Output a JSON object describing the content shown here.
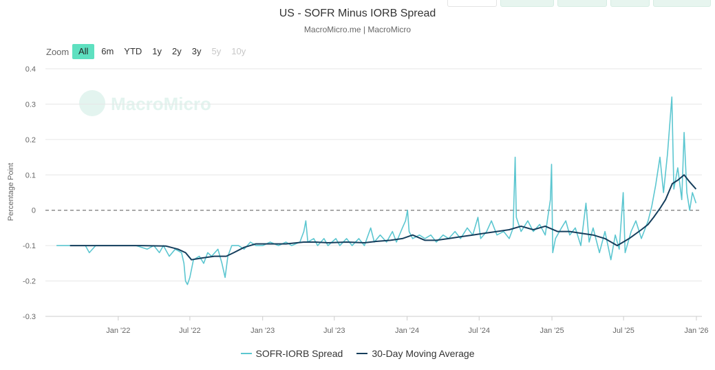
{
  "title": "US - SOFR Minus IORB Spread",
  "subtitle": "MacroMicro.me | MacroMicro",
  "watermark": "MacroMicro",
  "zoom": {
    "label": "Zoom",
    "buttons": [
      {
        "label": "All",
        "state": "active"
      },
      {
        "label": "6m",
        "state": "normal"
      },
      {
        "label": "YTD",
        "state": "normal"
      },
      {
        "label": "1y",
        "state": "normal"
      },
      {
        "label": "2y",
        "state": "normal"
      },
      {
        "label": "3y",
        "state": "normal"
      },
      {
        "label": "5y",
        "state": "disabled"
      },
      {
        "label": "10y",
        "state": "disabled"
      }
    ]
  },
  "colors": {
    "spread": "#5bc6d0",
    "moving_average": "#153e5c",
    "zero_line": "#777777",
    "grid": "#e6e6e6",
    "zoom_active": "#5ee0c0",
    "watermark": "#e5f4f0"
  },
  "chart_data": {
    "type": "line",
    "title": "US - SOFR Minus IORB Spread",
    "subtitle": "MacroMicro.me | MacroMicro",
    "ylabel": "Percentage Point",
    "ylim": [
      -0.3,
      0.4
    ],
    "yticks": [
      -0.3,
      -0.2,
      -0.1,
      0,
      0.1,
      0.2,
      0.3,
      0.4
    ],
    "ytick_labels": [
      "-0.3",
      "-0.2",
      "-0.1",
      "0",
      "0.1",
      "0.2",
      "0.3",
      "0.4"
    ],
    "xlim": [
      "2021-07-01",
      "2026-01-15"
    ],
    "xticks": [
      {
        "date": "2022-01-01",
        "label": "Jan '22"
      },
      {
        "date": "2022-07-01",
        "label": "Jul '22"
      },
      {
        "date": "2023-01-01",
        "label": "Jan '23"
      },
      {
        "date": "2023-07-01",
        "label": "Jul '23"
      },
      {
        "date": "2024-01-01",
        "label": "Jan '24"
      },
      {
        "date": "2024-07-01",
        "label": "Jul '24"
      },
      {
        "date": "2025-01-01",
        "label": "Jan '25"
      },
      {
        "date": "2025-07-01",
        "label": "Jul '25"
      },
      {
        "date": "2026-01-01",
        "label": "Jan '26"
      }
    ],
    "grid": true,
    "reference_line": {
      "y": 0,
      "style": "dashed"
    },
    "legend_position": "bottom-center",
    "series": [
      {
        "name": "SOFR-IORB Spread",
        "color": "#5bc6d0",
        "points": [
          [
            "2021-07-29",
            -0.1
          ],
          [
            "2021-09-15",
            -0.1
          ],
          [
            "2021-10-10",
            -0.1
          ],
          [
            "2021-10-20",
            -0.12
          ],
          [
            "2021-11-05",
            -0.1
          ],
          [
            "2021-12-31",
            -0.1
          ],
          [
            "2022-01-15",
            -0.1
          ],
          [
            "2022-02-15",
            -0.1
          ],
          [
            "2022-03-15",
            -0.11
          ],
          [
            "2022-04-01",
            -0.1
          ],
          [
            "2022-04-15",
            -0.12
          ],
          [
            "2022-04-25",
            -0.1
          ],
          [
            "2022-05-10",
            -0.13
          ],
          [
            "2022-05-25",
            -0.11
          ],
          [
            "2022-06-10",
            -0.12
          ],
          [
            "2022-06-16",
            -0.15
          ],
          [
            "2022-06-20",
            -0.2
          ],
          [
            "2022-06-25",
            -0.21
          ],
          [
            "2022-07-01",
            -0.19
          ],
          [
            "2022-07-10",
            -0.14
          ],
          [
            "2022-07-25",
            -0.13
          ],
          [
            "2022-08-05",
            -0.15
          ],
          [
            "2022-08-15",
            -0.12
          ],
          [
            "2022-08-25",
            -0.13
          ],
          [
            "2022-09-10",
            -0.11
          ],
          [
            "2022-09-20",
            -0.15
          ],
          [
            "2022-09-28",
            -0.19
          ],
          [
            "2022-10-05",
            -0.13
          ],
          [
            "2022-10-15",
            -0.1
          ],
          [
            "2022-11-01",
            -0.1
          ],
          [
            "2022-11-15",
            -0.11
          ],
          [
            "2022-12-01",
            -0.09
          ],
          [
            "2022-12-15",
            -0.1
          ],
          [
            "2023-01-01",
            -0.1
          ],
          [
            "2023-01-20",
            -0.09
          ],
          [
            "2023-02-10",
            -0.1
          ],
          [
            "2023-03-01",
            -0.09
          ],
          [
            "2023-03-15",
            -0.1
          ],
          [
            "2023-04-05",
            -0.09
          ],
          [
            "2023-04-15",
            -0.06
          ],
          [
            "2023-04-20",
            -0.03
          ],
          [
            "2023-04-25",
            -0.09
          ],
          [
            "2023-05-10",
            -0.08
          ],
          [
            "2023-05-20",
            -0.1
          ],
          [
            "2023-06-05",
            -0.08
          ],
          [
            "2023-06-15",
            -0.1
          ],
          [
            "2023-07-05",
            -0.08
          ],
          [
            "2023-07-15",
            -0.1
          ],
          [
            "2023-08-01",
            -0.08
          ],
          [
            "2023-08-15",
            -0.1
          ],
          [
            "2023-09-01",
            -0.08
          ],
          [
            "2023-09-15",
            -0.1
          ],
          [
            "2023-10-01",
            -0.05
          ],
          [
            "2023-10-10",
            -0.09
          ],
          [
            "2023-10-25",
            -0.07
          ],
          [
            "2023-11-10",
            -0.09
          ],
          [
            "2023-11-25",
            -0.06
          ],
          [
            "2023-12-05",
            -0.09
          ],
          [
            "2023-12-20",
            -0.05
          ],
          [
            "2023-12-28",
            -0.03
          ],
          [
            "2024-01-02",
            0.0
          ],
          [
            "2024-01-06",
            -0.06
          ],
          [
            "2024-01-15",
            -0.08
          ],
          [
            "2024-02-01",
            -0.07
          ],
          [
            "2024-02-15",
            -0.08
          ],
          [
            "2024-03-01",
            -0.07
          ],
          [
            "2024-03-15",
            -0.09
          ],
          [
            "2024-04-01",
            -0.07
          ],
          [
            "2024-04-15",
            -0.08
          ],
          [
            "2024-05-01",
            -0.06
          ],
          [
            "2024-05-15",
            -0.08
          ],
          [
            "2024-06-01",
            -0.05
          ],
          [
            "2024-06-15",
            -0.07
          ],
          [
            "2024-06-28",
            -0.02
          ],
          [
            "2024-07-05",
            -0.08
          ],
          [
            "2024-07-20",
            -0.06
          ],
          [
            "2024-08-01",
            -0.03
          ],
          [
            "2024-08-15",
            -0.07
          ],
          [
            "2024-09-01",
            -0.06
          ],
          [
            "2024-09-15",
            -0.08
          ],
          [
            "2024-09-25",
            -0.05
          ],
          [
            "2024-09-30",
            0.15
          ],
          [
            "2024-10-03",
            -0.02
          ],
          [
            "2024-10-15",
            -0.06
          ],
          [
            "2024-11-01",
            -0.03
          ],
          [
            "2024-11-15",
            -0.06
          ],
          [
            "2024-12-01",
            -0.04
          ],
          [
            "2024-12-15",
            -0.07
          ],
          [
            "2024-12-28",
            0.03
          ],
          [
            "2024-12-31",
            0.13
          ],
          [
            "2025-01-03",
            -0.12
          ],
          [
            "2025-01-10",
            -0.08
          ],
          [
            "2025-01-25",
            -0.05
          ],
          [
            "2025-02-05",
            -0.03
          ],
          [
            "2025-02-15",
            -0.07
          ],
          [
            "2025-03-01",
            -0.05
          ],
          [
            "2025-03-15",
            -0.1
          ],
          [
            "2025-03-28",
            0.02
          ],
          [
            "2025-04-05",
            -0.09
          ],
          [
            "2025-04-15",
            -0.05
          ],
          [
            "2025-05-01",
            -0.12
          ],
          [
            "2025-05-15",
            -0.06
          ],
          [
            "2025-05-30",
            -0.14
          ],
          [
            "2025-06-10",
            -0.07
          ],
          [
            "2025-06-20",
            -0.11
          ],
          [
            "2025-06-30",
            0.05
          ],
          [
            "2025-07-05",
            -0.12
          ],
          [
            "2025-07-20",
            -0.06
          ],
          [
            "2025-08-01",
            -0.03
          ],
          [
            "2025-08-15",
            -0.08
          ],
          [
            "2025-09-01",
            -0.03
          ],
          [
            "2025-09-10",
            0.01
          ],
          [
            "2025-09-20",
            0.07
          ],
          [
            "2025-10-01",
            0.15
          ],
          [
            "2025-10-10",
            0.05
          ],
          [
            "2025-10-20",
            0.16
          ],
          [
            "2025-10-31",
            0.32
          ],
          [
            "2025-11-05",
            0.06
          ],
          [
            "2025-11-15",
            0.12
          ],
          [
            "2025-11-25",
            0.03
          ],
          [
            "2025-12-01",
            0.22
          ],
          [
            "2025-12-08",
            0.05
          ],
          [
            "2025-12-15",
            0.0
          ],
          [
            "2025-12-22",
            0.05
          ],
          [
            "2025-12-31",
            0.02
          ]
        ]
      },
      {
        "name": "30-Day Moving Average",
        "color": "#153e5c",
        "points": [
          [
            "2021-09-01",
            -0.1
          ],
          [
            "2021-12-01",
            -0.1
          ],
          [
            "2022-03-01",
            -0.1
          ],
          [
            "2022-05-01",
            -0.101
          ],
          [
            "2022-06-01",
            -0.11
          ],
          [
            "2022-06-20",
            -0.12
          ],
          [
            "2022-07-05",
            -0.14
          ],
          [
            "2022-08-01",
            -0.135
          ],
          [
            "2022-09-01",
            -0.13
          ],
          [
            "2022-10-01",
            -0.13
          ],
          [
            "2022-10-20",
            -0.12
          ],
          [
            "2022-11-15",
            -0.105
          ],
          [
            "2022-12-15",
            -0.095
          ],
          [
            "2023-01-15",
            -0.095
          ],
          [
            "2023-03-01",
            -0.095
          ],
          [
            "2023-04-15",
            -0.09
          ],
          [
            "2023-05-15",
            -0.09
          ],
          [
            "2023-06-15",
            -0.092
          ],
          [
            "2023-08-01",
            -0.09
          ],
          [
            "2023-09-15",
            -0.092
          ],
          [
            "2023-10-15",
            -0.088
          ],
          [
            "2023-11-20",
            -0.085
          ],
          [
            "2023-12-20",
            -0.08
          ],
          [
            "2024-01-15",
            -0.07
          ],
          [
            "2024-02-15",
            -0.085
          ],
          [
            "2024-03-15",
            -0.085
          ],
          [
            "2024-04-15",
            -0.08
          ],
          [
            "2024-05-15",
            -0.075
          ],
          [
            "2024-06-15",
            -0.07
          ],
          [
            "2024-07-15",
            -0.065
          ],
          [
            "2024-08-15",
            -0.06
          ],
          [
            "2024-09-15",
            -0.055
          ],
          [
            "2024-10-15",
            -0.045
          ],
          [
            "2024-11-15",
            -0.055
          ],
          [
            "2024-12-15",
            -0.045
          ],
          [
            "2025-01-15",
            -0.06
          ],
          [
            "2025-02-15",
            -0.06
          ],
          [
            "2025-03-15",
            -0.065
          ],
          [
            "2025-04-15",
            -0.07
          ],
          [
            "2025-05-15",
            -0.08
          ],
          [
            "2025-06-15",
            -0.1
          ],
          [
            "2025-07-15",
            -0.08
          ],
          [
            "2025-08-15",
            -0.055
          ],
          [
            "2025-09-01",
            -0.04
          ],
          [
            "2025-09-15",
            -0.02
          ],
          [
            "2025-10-01",
            0.005
          ],
          [
            "2025-10-15",
            0.03
          ],
          [
            "2025-11-01",
            0.075
          ],
          [
            "2025-11-15",
            0.085
          ],
          [
            "2025-12-01",
            0.1
          ],
          [
            "2025-12-15",
            0.08
          ],
          [
            "2025-12-31",
            0.06
          ]
        ]
      }
    ]
  }
}
